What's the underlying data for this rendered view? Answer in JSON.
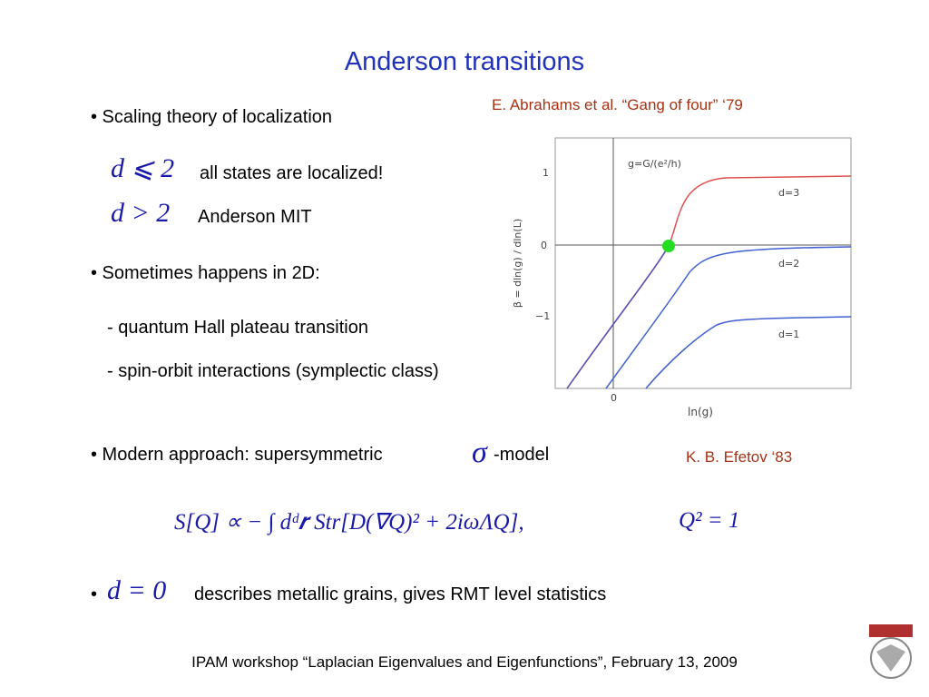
{
  "title": "Anderson transitions",
  "citations": [
    "E. Abrahams et al. “Gang of four”  ‘79",
    "K. B. Efetov  ‘83"
  ],
  "bullets": [
    {
      "text": "• Scaling theory of localization"
    },
    {
      "math": "d ⩽ 2",
      "text": "all states are localized!"
    },
    {
      "math": "d > 2",
      "text": "Anderson MIT"
    },
    {
      "text": "• Sometimes happens in 2D:"
    },
    {
      "text": "- quantum Hall plateau transition"
    },
    {
      "text": "- spin-orbit interactions (symplectic class)"
    },
    {
      "text": "• Modern approach: supersymmetric",
      "math": "σ",
      "suffix": "-model"
    },
    {
      "prefix": "•",
      "math": "d = 0",
      "text": "describes metallic grains, gives RMT level statistics"
    }
  ],
  "formula": "S[Q] ∝ − ∫ dᵈ𝒓 Str[D(∇Q)² + 2iωΛQ],",
  "constraint": "Q² = 1",
  "figure": {
    "legend": "g=G/(e²/h)",
    "y_label": "β = dln(g) / dln(L)",
    "x_label": "ln(g)",
    "curve_labels": [
      "d=3",
      "d=2",
      "d=1"
    ],
    "yticks": [
      "1",
      "0",
      "−1"
    ],
    "xticks": [
      "0"
    ]
  },
  "footer": "IPAM workshop “Laplacian Eigenvalues and Eigenfunctions”, February 13, 2009"
}
